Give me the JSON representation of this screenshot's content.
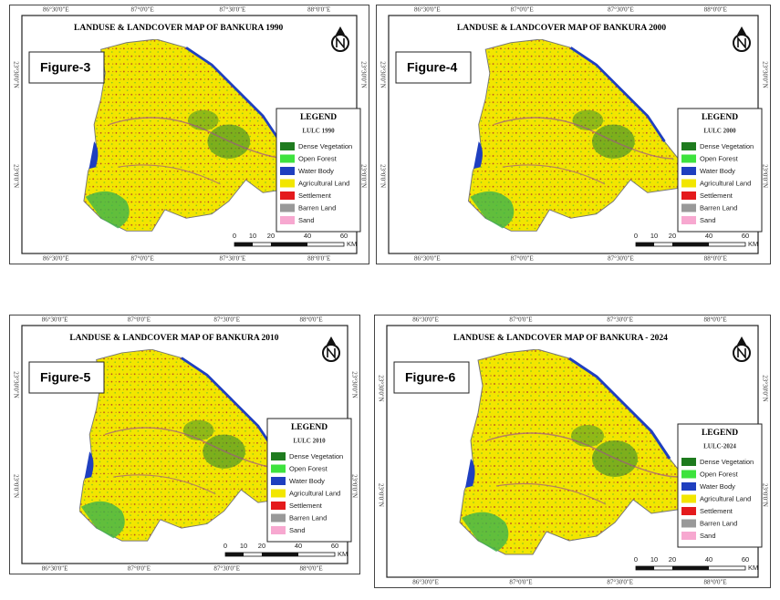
{
  "legend_items": [
    "Dense Vegetation",
    "Open Forest",
    "Water Body",
    "Agricultural Land",
    "Settlement",
    "Barren Land",
    "Sand"
  ],
  "scale_labels": [
    "0",
    "10",
    "20",
    "40",
    "60"
  ],
  "scale_unit": "KM",
  "legend_heading": "LEGEND",
  "lon_ticks": [
    "86°30'0\"E",
    "87°0'0\"E",
    "87°30'0\"E",
    "88°0'0\"E"
  ],
  "lat_ticks": [
    "23°30'0\"N",
    "23°0'0\"N"
  ],
  "panels": [
    {
      "figure": "Figure-3",
      "title": "LANDUSE & LANDCOVER MAP OF BANKURA 1990",
      "legend_subtitle": "LULC 1990"
    },
    {
      "figure": "Figure-4",
      "title": "LANDUSE & LANDCOVER MAP OF BANKURA 2000",
      "legend_subtitle": "LULC 2000"
    },
    {
      "figure": "Figure-5",
      "title": "LANDUSE & LANDCOVER MAP OF BANKURA 2010",
      "legend_subtitle": "LULC 2010"
    },
    {
      "figure": "Figure-6",
      "title": "LANDUSE & LANDCOVER MAP OF BANKURA - 2024",
      "legend_subtitle": "LULC-2024"
    }
  ]
}
